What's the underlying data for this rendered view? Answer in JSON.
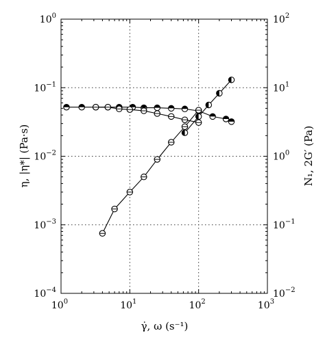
{
  "chart_data": {
    "type": "scatter",
    "x_axis": {
      "label": "γ̇, ω (s⁻¹)",
      "scale": "log",
      "range": [
        1,
        1000
      ],
      "ticks": [
        {
          "value": 1,
          "base": "10",
          "exp": "0"
        },
        {
          "value": 10,
          "base": "10",
          "exp": "1"
        },
        {
          "value": 100,
          "base": "10",
          "exp": "2"
        },
        {
          "value": 1000,
          "base": "10",
          "exp": "3"
        }
      ]
    },
    "y_axis_left": {
      "label": "η, |η*| (Pa·s)",
      "scale": "log",
      "range": [
        0.0001,
        1
      ],
      "ticks": [
        {
          "value": 0.0001,
          "base": "10",
          "exp": "−4"
        },
        {
          "value": 0.001,
          "base": "10",
          "exp": "−3"
        },
        {
          "value": 0.01,
          "base": "10",
          "exp": "−2"
        },
        {
          "value": 0.1,
          "base": "10",
          "exp": "−1"
        },
        {
          "value": 1,
          "base": "10",
          "exp": "0"
        }
      ]
    },
    "y_axis_right": {
      "label": "N₁, 2G′ (Pa)",
      "scale": "log",
      "range": [
        0.01,
        100
      ],
      "ticks": [
        {
          "value": 0.01,
          "base": "10",
          "exp": "−2"
        },
        {
          "value": 0.1,
          "base": "10",
          "exp": "−1"
        },
        {
          "value": 1,
          "base": "10",
          "exp": "0"
        },
        {
          "value": 10,
          "base": "10",
          "exp": "1"
        },
        {
          "value": 100,
          "base": "10",
          "exp": "2"
        }
      ]
    },
    "grid": "dotted at decades, interior only",
    "series": [
      {
        "axis": "left",
        "marker": "circle-half-top-filled",
        "x": [
          1.2,
          2,
          3.2,
          4.8,
          7,
          11,
          16,
          25,
          40,
          63,
          100,
          160,
          250,
          300
        ],
        "y": [
          0.052,
          0.052,
          0.052,
          0.052,
          0.052,
          0.052,
          0.051,
          0.051,
          0.05,
          0.049,
          0.046,
          0.038,
          0.035,
          0.032
        ]
      },
      {
        "axis": "left",
        "marker": "circle-horizontal-line",
        "x": [
          3.2,
          4.8,
          7,
          10,
          16,
          25,
          40,
          63,
          100
        ],
        "y": [
          0.052,
          0.052,
          0.049,
          0.048,
          0.046,
          0.042,
          0.038,
          0.034,
          0.031
        ]
      },
      {
        "axis": "right",
        "marker": "circle-horizontal-line",
        "x": [
          4,
          6,
          10,
          16,
          25,
          40,
          63,
          100
        ],
        "y": [
          0.075,
          0.17,
          0.3,
          0.5,
          0.9,
          1.6,
          2.7,
          4.7
        ]
      },
      {
        "axis": "right",
        "marker": "circle-half-left-filled",
        "x": [
          63,
          100,
          140,
          200,
          300
        ],
        "y": [
          2.2,
          3.8,
          5.6,
          8.3,
          13
        ]
      }
    ]
  }
}
